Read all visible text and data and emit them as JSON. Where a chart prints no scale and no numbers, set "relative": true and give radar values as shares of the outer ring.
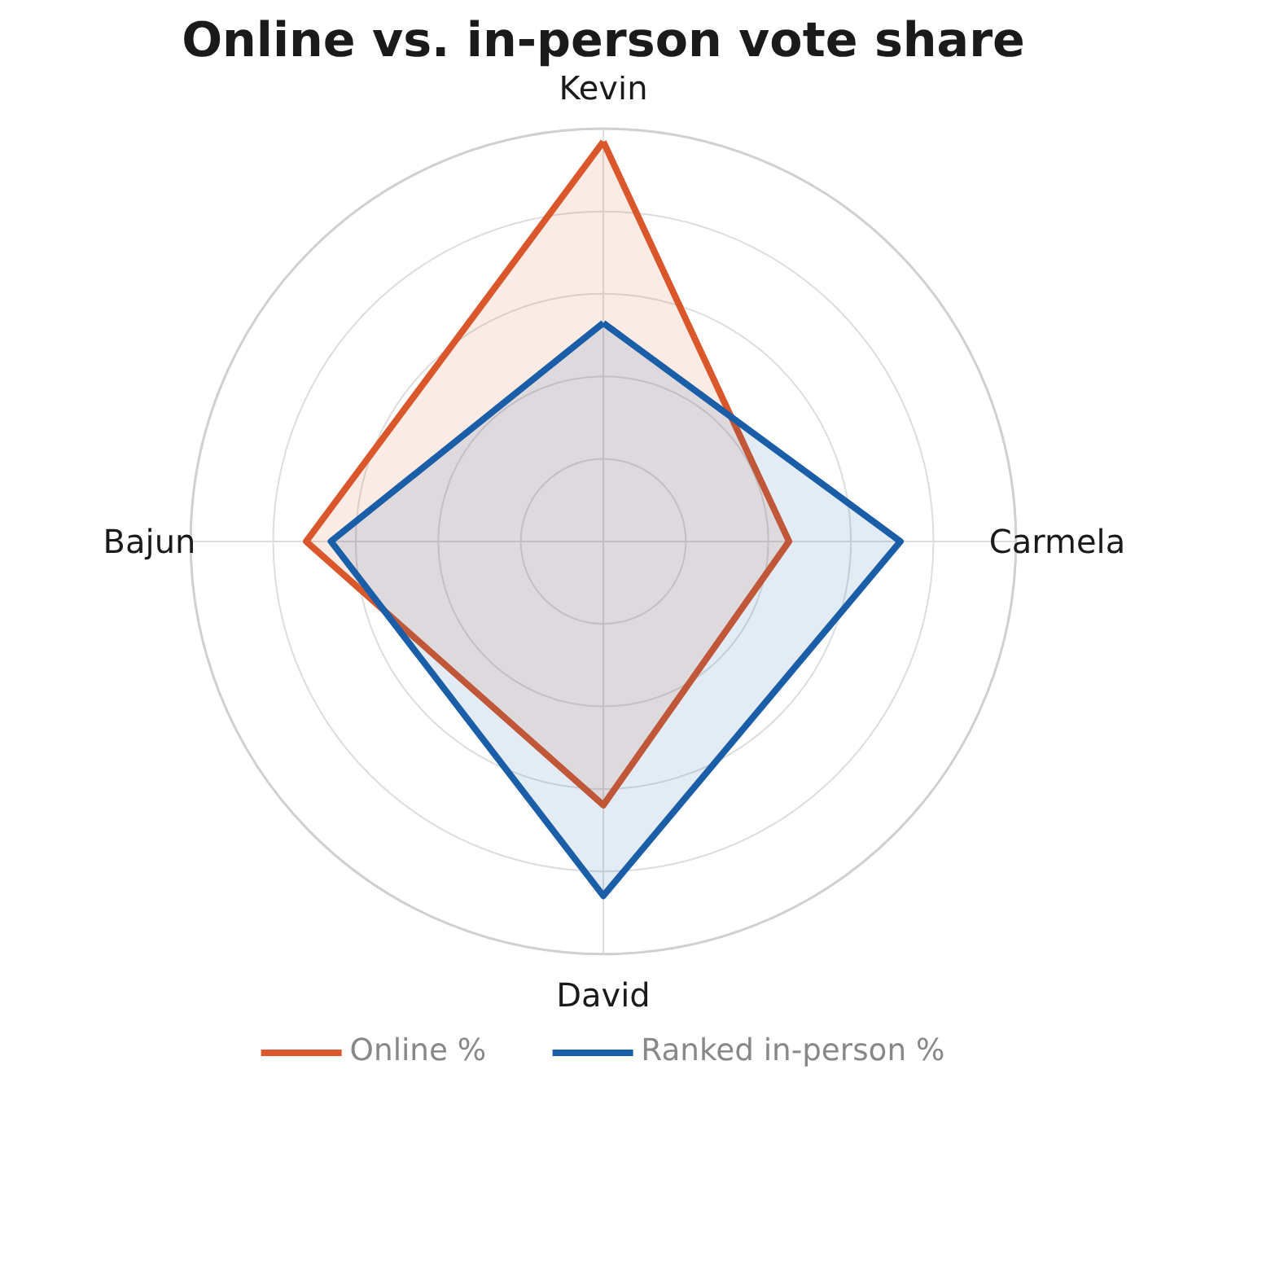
{
  "chart_data": {
    "type": "radar",
    "title": "Online vs. in-person vote share",
    "categories": [
      "Kevin",
      "Carmela",
      "David",
      "Bajun"
    ],
    "relative": true,
    "grid": true,
    "legend": "bottom",
    "marker": "none",
    "line_style": "solid",
    "series": [
      {
        "name": "Online %",
        "color": "#d9572b",
        "values": [
          0.97,
          0.45,
          0.64,
          0.72
        ]
      },
      {
        "name": "Ranked in-person %",
        "color": "#1a5ea8",
        "values": [
          0.53,
          0.72,
          0.86,
          0.66
        ]
      }
    ]
  }
}
